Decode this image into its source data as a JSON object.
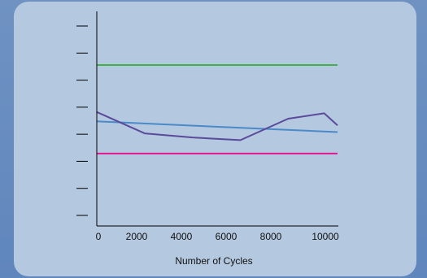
{
  "chart_data": {
    "type": "line",
    "title": "",
    "xlabel": "Number of Cycles",
    "ylabel": "",
    "xlim": [
      0,
      10500
    ],
    "x_ticks": [
      0,
      2000,
      4000,
      6000,
      8000,
      10000
    ],
    "x_tick_labels": [
      "0",
      "2000",
      "4000",
      "6000",
      "8000",
      "10000"
    ],
    "y_tick_count": 8,
    "y_tick_labels": [
      "",
      "",
      "",
      "",
      "",
      "",
      "",
      ""
    ],
    "ylim": [
      0,
      8
    ],
    "grid": false,
    "legend": "none",
    "series": [
      {
        "color": "#44b04a",
        "x": [
          0,
          10500
        ],
        "y": [
          6.0,
          6.0
        ]
      },
      {
        "color": "#e3168f",
        "x": [
          0,
          10500
        ],
        "y": [
          2.7,
          2.7
        ]
      },
      {
        "color": "#4a8ac9",
        "x": [
          0,
          10500
        ],
        "y": [
          3.9,
          3.5
        ]
      },
      {
        "color": "#5a4a9a",
        "x": [
          0,
          2000,
          4000,
          6000,
          8000,
          9500,
          10500
        ],
        "y": [
          4.25,
          3.45,
          3.3,
          3.2,
          4.0,
          4.2,
          3.75
        ]
      }
    ]
  }
}
